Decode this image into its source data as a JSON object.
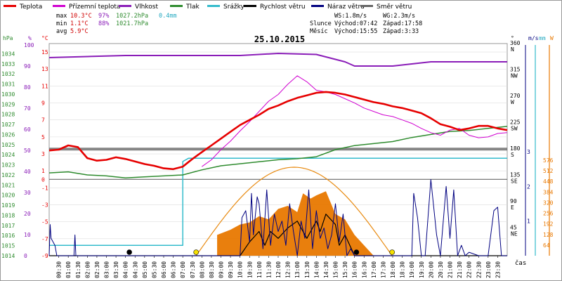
{
  "legend": [
    {
      "key": "teplota",
      "label": "Teplota",
      "color": "#e60000"
    },
    {
      "key": "pocit",
      "label": "Přízemní teplota",
      "color": "#d000d0"
    },
    {
      "key": "vlhkost",
      "label": "Vlhkost",
      "color": "#8a1db8"
    },
    {
      "key": "tlak",
      "label": "Tlak",
      "color": "#2e8b2e"
    },
    {
      "key": "srazky",
      "label": "Srážky",
      "color": "#33bbcc"
    },
    {
      "key": "rychlost",
      "label": "Rychlost větru",
      "color": "#000000"
    },
    {
      "key": "naraz",
      "label": "Náraz větru",
      "color": "#000080"
    },
    {
      "key": "smer",
      "label": "Směr větru",
      "color": "#666666"
    }
  ],
  "stats": {
    "max": {
      "label": "max",
      "temp": "10.3°C",
      "hum": "97%",
      "press": "1027.2hPa",
      "rain": "0.4mm"
    },
    "min": {
      "label": "min",
      "temp": "1.1°C",
      "hum": "88%",
      "press": "1021.7hPa"
    },
    "avg": {
      "label": "avg",
      "temp": "5.9°C"
    }
  },
  "info": {
    "ws": "WS:1.8m/s",
    "wg": "WG:2.3m/s",
    "slunce": "Slunce",
    "slunce_vychod": "Východ:07:42",
    "slunce_zapad": "Západ:17:58",
    "mesic": "Měsíc",
    "mesic_vychod": "Východ:15:55",
    "mesic_zapad": "Západ:3:33"
  },
  "chart_data": {
    "type": "line",
    "title": "25.10.2015",
    "xlabel": "čas",
    "x_ticks": [
      "00:30",
      "01:00",
      "01:30",
      "02:00",
      "02:30",
      "03:00",
      "03:30",
      "04:00",
      "04:30",
      "05:00",
      "05:30",
      "06:00",
      "06:30",
      "07:00",
      "07:30",
      "08:00",
      "08:30",
      "09:00",
      "09:30",
      "10:00",
      "10:30",
      "11:00",
      "11:30",
      "12:00",
      "12:30",
      "13:00",
      "13:30",
      "14:00",
      "14:30",
      "15:00",
      "15:30",
      "16:00",
      "16:30",
      "17:00",
      "17:30",
      "18:00",
      "18:30",
      "19:00",
      "19:30",
      "20:00",
      "20:30",
      "21:00",
      "21:30",
      "22:00",
      "22:30",
      "23:00",
      "23:30"
    ],
    "axes": {
      "hpa": {
        "label": "hPa",
        "ticks": [
          1014,
          1015,
          1016,
          1017,
          1018,
          1019,
          1020,
          1021,
          1022,
          1023,
          1024,
          1025,
          1026,
          1027,
          1028,
          1029,
          1030,
          1031,
          1032,
          1033,
          1034
        ],
        "range": [
          1014,
          1035
        ]
      },
      "pct": {
        "label": "%",
        "ticks": [
          0,
          10,
          20,
          30,
          40,
          50,
          60,
          70,
          80,
          90,
          100
        ]
      },
      "temp": {
        "label": "°C",
        "ticks": [
          -9,
          -7,
          -5,
          -3,
          -1,
          0,
          1,
          3,
          5,
          7,
          9,
          11,
          13,
          15
        ],
        "range": [
          -9,
          16
        ]
      },
      "dir": {
        "label": "°",
        "ticks": [
          {
            "v": 0,
            "t": "0"
          },
          {
            "v": 45,
            "t": "45"
          },
          {
            "v": 90,
            "t": "90"
          },
          {
            "v": 135,
            "t": "135"
          },
          {
            "v": 180,
            "t": "180"
          },
          {
            "v": 225,
            "t": "225"
          },
          {
            "v": 270,
            "t": "270"
          },
          {
            "v": 315,
            "t": "315"
          },
          {
            "v": 360,
            "t": "360"
          }
        ],
        "names": [
          "N",
          "NE",
          "E",
          "SE",
          "S",
          "SW",
          "W",
          "NW",
          "N"
        ]
      },
      "ms": {
        "label": "m/s",
        "ticks": [
          1,
          2,
          3
        ]
      },
      "mm": {
        "label": "mm",
        "ticks": [
          64,
          128,
          192,
          256,
          320,
          384,
          448,
          512,
          576
        ]
      }
    },
    "series": [
      {
        "key": "teplota",
        "name": "Teplota",
        "unit": "°C",
        "x": [
          0,
          0.5,
          1,
          1.5,
          2,
          2.5,
          3,
          3.5,
          4,
          4.5,
          5,
          5.5,
          6,
          6.5,
          7,
          7.5,
          8,
          8.5,
          9,
          9.5,
          10,
          10.5,
          11,
          11.5,
          12,
          12.5,
          13,
          13.5,
          14,
          14.5,
          15,
          15.5,
          16,
          16.5,
          17,
          17.5,
          18,
          18.5,
          19,
          19.5,
          20,
          20.5,
          21,
          21.5,
          22,
          22.5,
          23,
          23.5,
          24
        ],
        "y": [
          3.4,
          3.5,
          4.0,
          3.8,
          2.5,
          2.2,
          2.3,
          2.6,
          2.4,
          2.1,
          1.8,
          1.6,
          1.3,
          1.2,
          1.5,
          2.4,
          3.2,
          4.0,
          4.8,
          5.6,
          6.4,
          7.0,
          7.6,
          8.3,
          8.7,
          9.2,
          9.6,
          9.9,
          10.2,
          10.3,
          10.2,
          10.0,
          9.7,
          9.4,
          9.1,
          8.9,
          8.6,
          8.4,
          8.1,
          7.8,
          7.2,
          6.5,
          6.2,
          5.8,
          6.0,
          6.3,
          6.3,
          6.0,
          5.8
        ]
      },
      {
        "key": "pocit",
        "name": "Přízemní teplota",
        "unit": "°C",
        "x": [
          8,
          8.5,
          9,
          9.5,
          10,
          10.5,
          11,
          11.5,
          12,
          12.5,
          13,
          13.5,
          14,
          14.5,
          15,
          15.5,
          16,
          16.5,
          17,
          17.5,
          18,
          18.5,
          19,
          19.5,
          20,
          20.5,
          21,
          21.5,
          22,
          22.5,
          23,
          23.5,
          24
        ],
        "y": [
          1.5,
          2.3,
          3.5,
          4.5,
          5.7,
          6.8,
          8.0,
          9.2,
          10.0,
          11.2,
          12.2,
          11.5,
          10.5,
          10.3,
          10.0,
          9.5,
          9.0,
          8.4,
          8.0,
          7.6,
          7.4,
          7.0,
          6.6,
          6.0,
          5.5,
          5.2,
          5.8,
          6.0,
          5.2,
          4.9,
          5.0,
          5.4,
          5.5
        ]
      },
      {
        "key": "vlhkost",
        "name": "Vlhkost",
        "unit": "%",
        "x": [
          0,
          2,
          4,
          6,
          8,
          10,
          12,
          14,
          15.5,
          16,
          18,
          20,
          22,
          24
        ],
        "y": [
          94,
          94.5,
          95,
          95,
          95,
          95,
          96,
          95.5,
          92,
          90,
          90,
          92,
          92,
          92
        ]
      },
      {
        "key": "tlak",
        "name": "Tlak",
        "unit": "hPa",
        "x": [
          0,
          1,
          2,
          3,
          4,
          5,
          6,
          7,
          8,
          9,
          10,
          11,
          12,
          13,
          14,
          15,
          16,
          17,
          18,
          19,
          20,
          21,
          22,
          23,
          24
        ],
        "y": [
          1022.2,
          1022.3,
          1022.0,
          1021.9,
          1021.7,
          1021.8,
          1021.9,
          1022.0,
          1022.5,
          1022.9,
          1023.1,
          1023.3,
          1023.5,
          1023.6,
          1023.8,
          1024.5,
          1024.9,
          1025.1,
          1025.3,
          1025.7,
          1026.0,
          1026.3,
          1026.4,
          1026.6,
          1026.8
        ]
      },
      {
        "key": "srazky",
        "name": "Srážky",
        "unit": "mm",
        "x": [
          0,
          7,
          7,
          7.3,
          24
        ],
        "y": [
          1.6,
          1.6,
          14.5,
          15.0,
          15.0
        ]
      },
      {
        "key": "rychlost",
        "name": "Rychlost větru",
        "unit": "m/s",
        "x": [
          0,
          10,
          10.5,
          11,
          11.3,
          11.6,
          12,
          12.5,
          13,
          13.5,
          14,
          14.2,
          14.5,
          15,
          15.2,
          15.5,
          16,
          24
        ],
        "y": [
          0,
          0,
          0.4,
          0.7,
          0.3,
          0.7,
          0.5,
          0.8,
          1.0,
          0.5,
          1.0,
          0.7,
          1.2,
          0.9,
          0.3,
          0.6,
          0,
          0
        ]
      },
      {
        "key": "naraz",
        "name": "Náraz větru",
        "unit": "m/s",
        "x": [
          0,
          0.05,
          0.1,
          0.3,
          0.4,
          1.3,
          1.35,
          1.4,
          10,
          10.1,
          10.3,
          10.5,
          10.6,
          10.7,
          10.9,
          11,
          11.2,
          11.4,
          11.6,
          11.8,
          12,
          12.2,
          12.4,
          12.6,
          12.8,
          13,
          13.2,
          13.4,
          13.6,
          13.8,
          14,
          14.2,
          14.4,
          14.6,
          14.8,
          15,
          15.2,
          15.4,
          15.6,
          15.8,
          16,
          16.5,
          19,
          19.1,
          19.3,
          19.5,
          19.7,
          20,
          20.3,
          20.5,
          20.8,
          21,
          21.2,
          21.4,
          21.6,
          21.8,
          22,
          22.5,
          23,
          23.3,
          23.5,
          23.7,
          24
        ],
        "y": [
          0,
          0.9,
          0.5,
          0.3,
          0,
          0,
          0.6,
          0,
          0,
          1.1,
          1.3,
          0.4,
          1.8,
          0.6,
          1.7,
          1.5,
          0.2,
          1.9,
          0.3,
          1.2,
          0.7,
          1.0,
          0.3,
          1.5,
          0.7,
          0,
          1.0,
          0.5,
          1.9,
          0.2,
          1.3,
          0.5,
          0.8,
          0.2,
          0.6,
          1.5,
          0.4,
          1.2,
          0,
          0.2,
          0,
          0,
          0,
          1.8,
          1.1,
          0,
          0,
          2.2,
          0.6,
          0,
          2.0,
          0.5,
          1.9,
          0,
          0.3,
          0,
          0.1,
          0,
          0,
          1.3,
          1.4,
          0,
          0
        ]
      },
      {
        "key": "smer",
        "name": "Směr větru",
        "unit": "°",
        "x": [
          0,
          24
        ],
        "y": [
          182,
          182
        ]
      }
    ],
    "sun_arc": {
      "sunrise": 7.7,
      "sunset": 17.97,
      "color": "#e88a10"
    },
    "solar": {
      "x": [
        8.8,
        9.5,
        10,
        10.5,
        11,
        11.5,
        12,
        12.5,
        13,
        13.3,
        13.7,
        14,
        14.5,
        15,
        15.5,
        16,
        16.5,
        17
      ],
      "y": [
        20,
        25,
        30,
        32,
        38,
        35,
        45,
        48,
        42,
        60,
        55,
        58,
        62,
        40,
        35,
        20,
        10,
        0
      ],
      "color": "#e87800"
    },
    "markers": [
      {
        "x": 4.2,
        "color": "#000000"
      },
      {
        "x": 7.7,
        "color": "#f5e000"
      },
      {
        "x": 16.1,
        "color": "#000000"
      },
      {
        "x": 17.97,
        "color": "#f5e000"
      }
    ]
  }
}
